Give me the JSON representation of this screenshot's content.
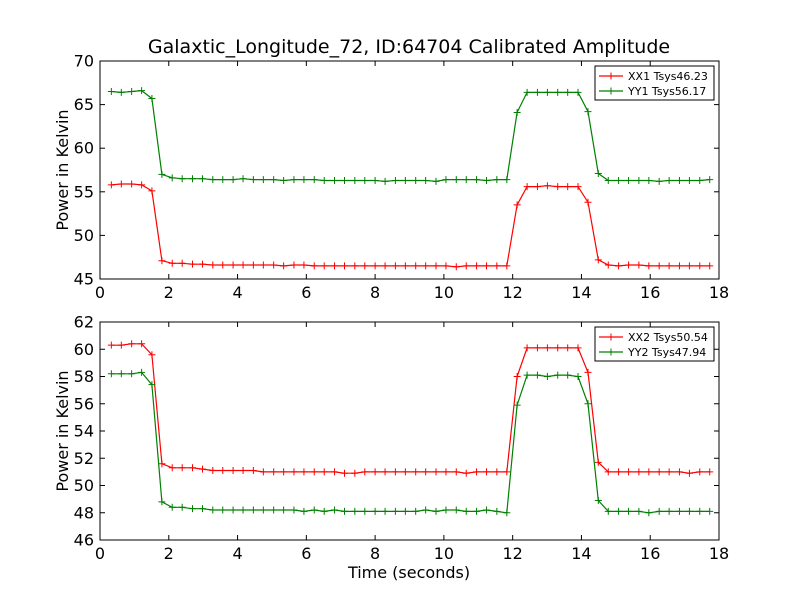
{
  "chart_data": [
    {
      "type": "line",
      "title": "Galaxtic_Longitude_72, ID:64704 Calibrated Amplitude",
      "xlabel": "",
      "ylabel": "Power in Kelvin",
      "xlim": [
        0,
        18
      ],
      "ylim": [
        45,
        70
      ],
      "xticks": [
        0,
        2,
        4,
        6,
        8,
        10,
        12,
        14,
        16,
        18
      ],
      "yticks": [
        45,
        50,
        55,
        60,
        65,
        70
      ],
      "grid": false,
      "legend_position": "top-right",
      "series": [
        {
          "name": "XX1 Tsys46.23",
          "color": "#ff0000",
          "x": [
            0.33,
            0.62,
            0.92,
            1.21,
            1.51,
            1.8,
            2.1,
            2.39,
            2.69,
            2.98,
            3.28,
            3.57,
            3.87,
            4.16,
            4.46,
            4.75,
            5.05,
            5.34,
            5.64,
            5.93,
            6.23,
            6.52,
            6.82,
            7.11,
            7.41,
            7.7,
            8.0,
            8.29,
            8.59,
            8.88,
            9.18,
            9.47,
            9.77,
            10.06,
            10.36,
            10.65,
            10.95,
            11.24,
            11.54,
            11.83,
            12.13,
            12.42,
            12.72,
            13.01,
            13.31,
            13.6,
            13.9,
            14.19,
            14.49,
            14.78,
            15.08,
            15.37,
            15.67,
            15.96,
            16.26,
            16.55,
            16.85,
            17.14,
            17.44,
            17.73
          ],
          "y": [
            55.8,
            55.9,
            55.9,
            55.8,
            55.1,
            47.1,
            46.8,
            46.8,
            46.7,
            46.7,
            46.6,
            46.6,
            46.6,
            46.6,
            46.6,
            46.6,
            46.6,
            46.5,
            46.6,
            46.6,
            46.5,
            46.5,
            46.5,
            46.5,
            46.5,
            46.5,
            46.5,
            46.5,
            46.5,
            46.5,
            46.5,
            46.5,
            46.5,
            46.5,
            46.4,
            46.5,
            46.5,
            46.5,
            46.5,
            46.5,
            53.5,
            55.6,
            55.6,
            55.7,
            55.6,
            55.6,
            55.6,
            53.8,
            47.2,
            46.6,
            46.5,
            46.6,
            46.6,
            46.5,
            46.5,
            46.5,
            46.5,
            46.5,
            46.5,
            46.5
          ]
        },
        {
          "name": "YY1 Tsys56.17",
          "color": "#008000",
          "x": [
            0.33,
            0.62,
            0.92,
            1.21,
            1.51,
            1.8,
            2.1,
            2.39,
            2.69,
            2.98,
            3.28,
            3.57,
            3.87,
            4.16,
            4.46,
            4.75,
            5.05,
            5.34,
            5.64,
            5.93,
            6.23,
            6.52,
            6.82,
            7.11,
            7.41,
            7.7,
            8.0,
            8.29,
            8.59,
            8.88,
            9.18,
            9.47,
            9.77,
            10.06,
            10.36,
            10.65,
            10.95,
            11.24,
            11.54,
            11.83,
            12.13,
            12.42,
            12.72,
            13.01,
            13.31,
            13.6,
            13.9,
            14.19,
            14.49,
            14.78,
            15.08,
            15.37,
            15.67,
            15.96,
            16.26,
            16.55,
            16.85,
            17.14,
            17.44,
            17.73
          ],
          "y": [
            66.5,
            66.4,
            66.5,
            66.6,
            65.7,
            57.0,
            56.6,
            56.5,
            56.5,
            56.5,
            56.4,
            56.4,
            56.4,
            56.5,
            56.4,
            56.4,
            56.4,
            56.3,
            56.4,
            56.4,
            56.4,
            56.3,
            56.3,
            56.3,
            56.3,
            56.3,
            56.3,
            56.2,
            56.3,
            56.3,
            56.3,
            56.3,
            56.2,
            56.4,
            56.4,
            56.4,
            56.4,
            56.3,
            56.4,
            56.4,
            64.1,
            66.4,
            66.4,
            66.4,
            66.4,
            66.4,
            66.4,
            64.2,
            57.1,
            56.3,
            56.3,
            56.3,
            56.3,
            56.3,
            56.2,
            56.3,
            56.3,
            56.3,
            56.3,
            56.4
          ]
        }
      ]
    },
    {
      "type": "line",
      "title": "",
      "xlabel": "Time (seconds)",
      "ylabel": "Power in Kelvin",
      "xlim": [
        0,
        18
      ],
      "ylim": [
        46,
        62
      ],
      "xticks": [
        0,
        2,
        4,
        6,
        8,
        10,
        12,
        14,
        16,
        18
      ],
      "yticks": [
        46,
        48,
        50,
        52,
        54,
        56,
        58,
        60,
        62
      ],
      "grid": false,
      "legend_position": "top-right",
      "series": [
        {
          "name": "XX2 Tsys50.54",
          "color": "#ff0000",
          "x": [
            0.33,
            0.62,
            0.92,
            1.21,
            1.51,
            1.8,
            2.1,
            2.39,
            2.69,
            2.98,
            3.28,
            3.57,
            3.87,
            4.16,
            4.46,
            4.75,
            5.05,
            5.34,
            5.64,
            5.93,
            6.23,
            6.52,
            6.82,
            7.11,
            7.41,
            7.7,
            8.0,
            8.29,
            8.59,
            8.88,
            9.18,
            9.47,
            9.77,
            10.06,
            10.36,
            10.65,
            10.95,
            11.24,
            11.54,
            11.83,
            12.13,
            12.42,
            12.72,
            13.01,
            13.31,
            13.6,
            13.9,
            14.19,
            14.49,
            14.78,
            15.08,
            15.37,
            15.67,
            15.96,
            16.26,
            16.55,
            16.85,
            17.14,
            17.44,
            17.73
          ],
          "y": [
            60.3,
            60.3,
            60.4,
            60.4,
            59.6,
            51.6,
            51.3,
            51.3,
            51.3,
            51.2,
            51.1,
            51.1,
            51.1,
            51.1,
            51.1,
            51.0,
            51.0,
            51.0,
            51.0,
            51.0,
            51.0,
            51.0,
            51.0,
            50.9,
            50.9,
            51.0,
            51.0,
            51.0,
            51.0,
            51.0,
            51.0,
            51.0,
            51.0,
            51.0,
            51.0,
            50.9,
            51.0,
            51.0,
            51.0,
            51.0,
            58.0,
            60.1,
            60.1,
            60.1,
            60.1,
            60.1,
            60.1,
            58.3,
            51.7,
            51.0,
            51.0,
            51.0,
            51.0,
            51.0,
            51.0,
            51.0,
            51.0,
            50.9,
            51.0,
            51.0
          ]
        },
        {
          "name": "YY2 Tsys47.94",
          "color": "#008000",
          "x": [
            0.33,
            0.62,
            0.92,
            1.21,
            1.51,
            1.8,
            2.1,
            2.39,
            2.69,
            2.98,
            3.28,
            3.57,
            3.87,
            4.16,
            4.46,
            4.75,
            5.05,
            5.34,
            5.64,
            5.93,
            6.23,
            6.52,
            6.82,
            7.11,
            7.41,
            7.7,
            8.0,
            8.29,
            8.59,
            8.88,
            9.18,
            9.47,
            9.77,
            10.06,
            10.36,
            10.65,
            10.95,
            11.24,
            11.54,
            11.83,
            12.13,
            12.42,
            12.72,
            13.01,
            13.31,
            13.6,
            13.9,
            14.19,
            14.49,
            14.78,
            15.08,
            15.37,
            15.67,
            15.96,
            16.26,
            16.55,
            16.85,
            17.14,
            17.44,
            17.73
          ],
          "y": [
            58.2,
            58.2,
            58.2,
            58.3,
            57.4,
            48.8,
            48.4,
            48.4,
            48.3,
            48.3,
            48.2,
            48.2,
            48.2,
            48.2,
            48.2,
            48.2,
            48.2,
            48.2,
            48.2,
            48.1,
            48.2,
            48.1,
            48.2,
            48.1,
            48.1,
            48.1,
            48.1,
            48.1,
            48.1,
            48.1,
            48.1,
            48.2,
            48.1,
            48.2,
            48.2,
            48.1,
            48.1,
            48.2,
            48.1,
            48.0,
            55.9,
            58.1,
            58.1,
            58.0,
            58.1,
            58.1,
            58.0,
            56.0,
            48.9,
            48.1,
            48.1,
            48.1,
            48.1,
            48.0,
            48.1,
            48.1,
            48.1,
            48.1,
            48.1,
            48.1
          ]
        }
      ]
    }
  ]
}
